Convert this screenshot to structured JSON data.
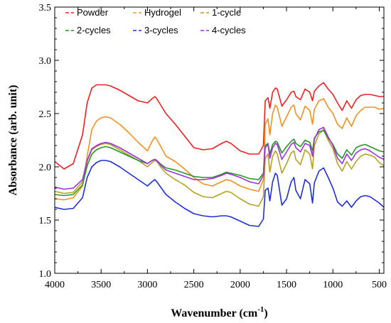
{
  "chart_data": {
    "type": "line",
    "xlabel": "Wavenumber (cm",
    "xlabel_sup": "-1",
    "xlabel_tail": ")",
    "ylabel": "Absorbance (arb. unit)",
    "xlim": [
      4000,
      450
    ],
    "ylim": [
      1.0,
      3.5
    ],
    "x_reversed": true,
    "xticks": [
      4000,
      3500,
      3000,
      2500,
      2000,
      1500,
      1000,
      500
    ],
    "yticks": [
      1.0,
      1.5,
      2.0,
      2.5,
      3.0,
      3.5
    ],
    "xtick_labels": [
      "4000",
      "3500",
      "3000",
      "2500",
      "2000",
      "1500",
      "1000",
      "500"
    ],
    "ytick_labels": [
      "1.0",
      "1.5",
      "2.0",
      "2.5",
      "3.0",
      "3.5"
    ],
    "grid": false,
    "legend_position": "top-left",
    "x": [
      4000,
      3900,
      3800,
      3700,
      3650,
      3600,
      3550,
      3500,
      3450,
      3400,
      3300,
      3200,
      3100,
      3000,
      2950,
      2920,
      2900,
      2850,
      2800,
      2700,
      2600,
      2500,
      2400,
      2300,
      2200,
      2150,
      2100,
      2000,
      1900,
      1800,
      1750,
      1730,
      1700,
      1680,
      1650,
      1620,
      1600,
      1550,
      1500,
      1450,
      1420,
      1400,
      1350,
      1300,
      1250,
      1220,
      1200,
      1150,
      1100,
      1050,
      1000,
      950,
      900,
      850,
      800,
      750,
      700,
      650,
      600,
      550,
      500,
      450
    ],
    "series": [
      {
        "name": "Powder",
        "color": "#ee2020",
        "values": [
          2.05,
          1.98,
          2.03,
          2.3,
          2.6,
          2.74,
          2.77,
          2.77,
          2.77,
          2.76,
          2.72,
          2.67,
          2.62,
          2.6,
          2.64,
          2.66,
          2.64,
          2.57,
          2.5,
          2.4,
          2.29,
          2.18,
          2.16,
          2.17,
          2.22,
          2.24,
          2.22,
          2.15,
          2.12,
          2.12,
          2.2,
          2.62,
          2.65,
          2.55,
          2.7,
          2.74,
          2.73,
          2.57,
          2.63,
          2.7,
          2.71,
          2.66,
          2.63,
          2.73,
          2.7,
          2.62,
          2.71,
          2.76,
          2.79,
          2.73,
          2.68,
          2.6,
          2.53,
          2.62,
          2.55,
          2.63,
          2.67,
          2.68,
          2.68,
          2.67,
          2.66,
          2.66
        ]
      },
      {
        "name": "Hydrogel",
        "color": "#f39020",
        "values": [
          1.7,
          1.69,
          1.71,
          1.82,
          2.1,
          2.35,
          2.43,
          2.46,
          2.47,
          2.46,
          2.4,
          2.32,
          2.23,
          2.15,
          2.24,
          2.28,
          2.26,
          2.18,
          2.1,
          2.05,
          1.98,
          1.9,
          1.84,
          1.82,
          1.86,
          1.88,
          1.87,
          1.82,
          1.79,
          1.77,
          1.88,
          2.4,
          2.45,
          2.3,
          2.5,
          2.58,
          2.56,
          2.38,
          2.47,
          2.56,
          2.58,
          2.5,
          2.44,
          2.57,
          2.53,
          2.4,
          2.54,
          2.62,
          2.64,
          2.56,
          2.5,
          2.4,
          2.36,
          2.46,
          2.38,
          2.48,
          2.53,
          2.56,
          2.56,
          2.56,
          2.54,
          2.55
        ]
      },
      {
        "name": "1-cycle",
        "color": "#b8a020",
        "values": [
          1.77,
          1.75,
          1.76,
          1.86,
          2.05,
          2.16,
          2.19,
          2.21,
          2.22,
          2.21,
          2.16,
          2.11,
          2.06,
          2.0,
          2.04,
          2.06,
          2.05,
          1.99,
          1.94,
          1.88,
          1.83,
          1.76,
          1.72,
          1.71,
          1.75,
          1.77,
          1.76,
          1.7,
          1.65,
          1.63,
          1.72,
          2.08,
          2.12,
          1.95,
          2.1,
          2.15,
          2.12,
          1.94,
          2.03,
          2.13,
          2.15,
          2.07,
          2.02,
          2.16,
          2.12,
          1.98,
          2.2,
          2.31,
          2.35,
          2.25,
          2.17,
          2.03,
          1.96,
          2.05,
          1.98,
          2.05,
          2.1,
          2.12,
          2.11,
          2.09,
          2.04,
          2.01
        ]
      },
      {
        "name": "2-cycles",
        "color": "#229922",
        "values": [
          1.74,
          1.73,
          1.74,
          1.83,
          2.01,
          2.12,
          2.16,
          2.18,
          2.19,
          2.18,
          2.14,
          2.1,
          2.06,
          2.03,
          2.06,
          2.07,
          2.06,
          2.02,
          1.99,
          1.97,
          1.94,
          1.91,
          1.9,
          1.9,
          1.93,
          1.95,
          1.94,
          1.92,
          1.89,
          1.88,
          1.94,
          2.2,
          2.22,
          2.12,
          2.21,
          2.24,
          2.23,
          2.13,
          2.19,
          2.24,
          2.26,
          2.22,
          2.19,
          2.25,
          2.23,
          2.15,
          2.27,
          2.33,
          2.34,
          2.27,
          2.21,
          2.12,
          2.08,
          2.16,
          2.11,
          2.18,
          2.2,
          2.21,
          2.19,
          2.17,
          2.15,
          2.14
        ]
      },
      {
        "name": "3-cycles",
        "color": "#1f2fd8",
        "values": [
          1.62,
          1.6,
          1.61,
          1.71,
          1.9,
          2.0,
          2.04,
          2.06,
          2.06,
          2.05,
          2.0,
          1.94,
          1.88,
          1.82,
          1.86,
          1.88,
          1.86,
          1.8,
          1.74,
          1.67,
          1.61,
          1.56,
          1.54,
          1.53,
          1.54,
          1.54,
          1.53,
          1.49,
          1.45,
          1.44,
          1.51,
          1.78,
          1.8,
          1.68,
          1.86,
          1.94,
          1.92,
          1.64,
          1.7,
          1.86,
          1.9,
          1.78,
          1.7,
          1.88,
          1.84,
          1.66,
          1.85,
          1.96,
          1.99,
          1.9,
          1.8,
          1.67,
          1.63,
          1.68,
          1.62,
          1.68,
          1.72,
          1.73,
          1.72,
          1.69,
          1.66,
          1.62
        ]
      },
      {
        "name": "4-cycles",
        "color": "#a030d8",
        "values": [
          1.81,
          1.79,
          1.8,
          1.88,
          2.06,
          2.17,
          2.2,
          2.22,
          2.23,
          2.22,
          2.18,
          2.13,
          2.08,
          2.03,
          2.06,
          2.07,
          2.06,
          2.01,
          1.97,
          1.94,
          1.91,
          1.88,
          1.88,
          1.89,
          1.92,
          1.94,
          1.93,
          1.9,
          1.86,
          1.84,
          1.92,
          2.18,
          2.21,
          2.08,
          2.18,
          2.22,
          2.21,
          2.07,
          2.14,
          2.21,
          2.23,
          2.18,
          2.14,
          2.22,
          2.2,
          2.1,
          2.26,
          2.35,
          2.37,
          2.28,
          2.2,
          2.08,
          2.03,
          2.12,
          2.06,
          2.13,
          2.16,
          2.17,
          2.15,
          2.12,
          2.09,
          2.07
        ]
      }
    ]
  }
}
